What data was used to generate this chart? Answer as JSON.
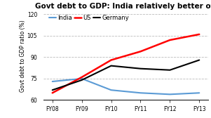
{
  "title": "Govt debt to GDP: India relatively better off",
  "ylabel": "Govt debt to GDP ratio (%)",
  "categories": [
    "FY08",
    "FY09",
    "FY10",
    "FY11",
    "FY12",
    "FY13"
  ],
  "series": {
    "India": {
      "values": [
        73,
        75,
        67,
        65,
        64,
        65
      ],
      "color": "#5B9BD5",
      "linewidth": 1.5
    },
    "US": {
      "values": [
        65,
        76,
        88,
        94,
        102,
        106
      ],
      "color": "#FF0000",
      "linewidth": 1.8
    },
    "Germany": {
      "values": [
        67,
        74,
        84,
        82,
        81,
        88
      ],
      "color": "#000000",
      "linewidth": 1.5
    }
  },
  "ylim": [
    60,
    122
  ],
  "yticks": [
    60,
    75,
    90,
    105,
    120
  ],
  "grid_color": "#BBBBBB",
  "bg_color": "#FFFFFF",
  "plot_bg_color": "#F0F0F0",
  "title_fontsize": 7.5,
  "axis_label_fontsize": 5.5,
  "tick_fontsize": 5.5,
  "legend_fontsize": 6
}
